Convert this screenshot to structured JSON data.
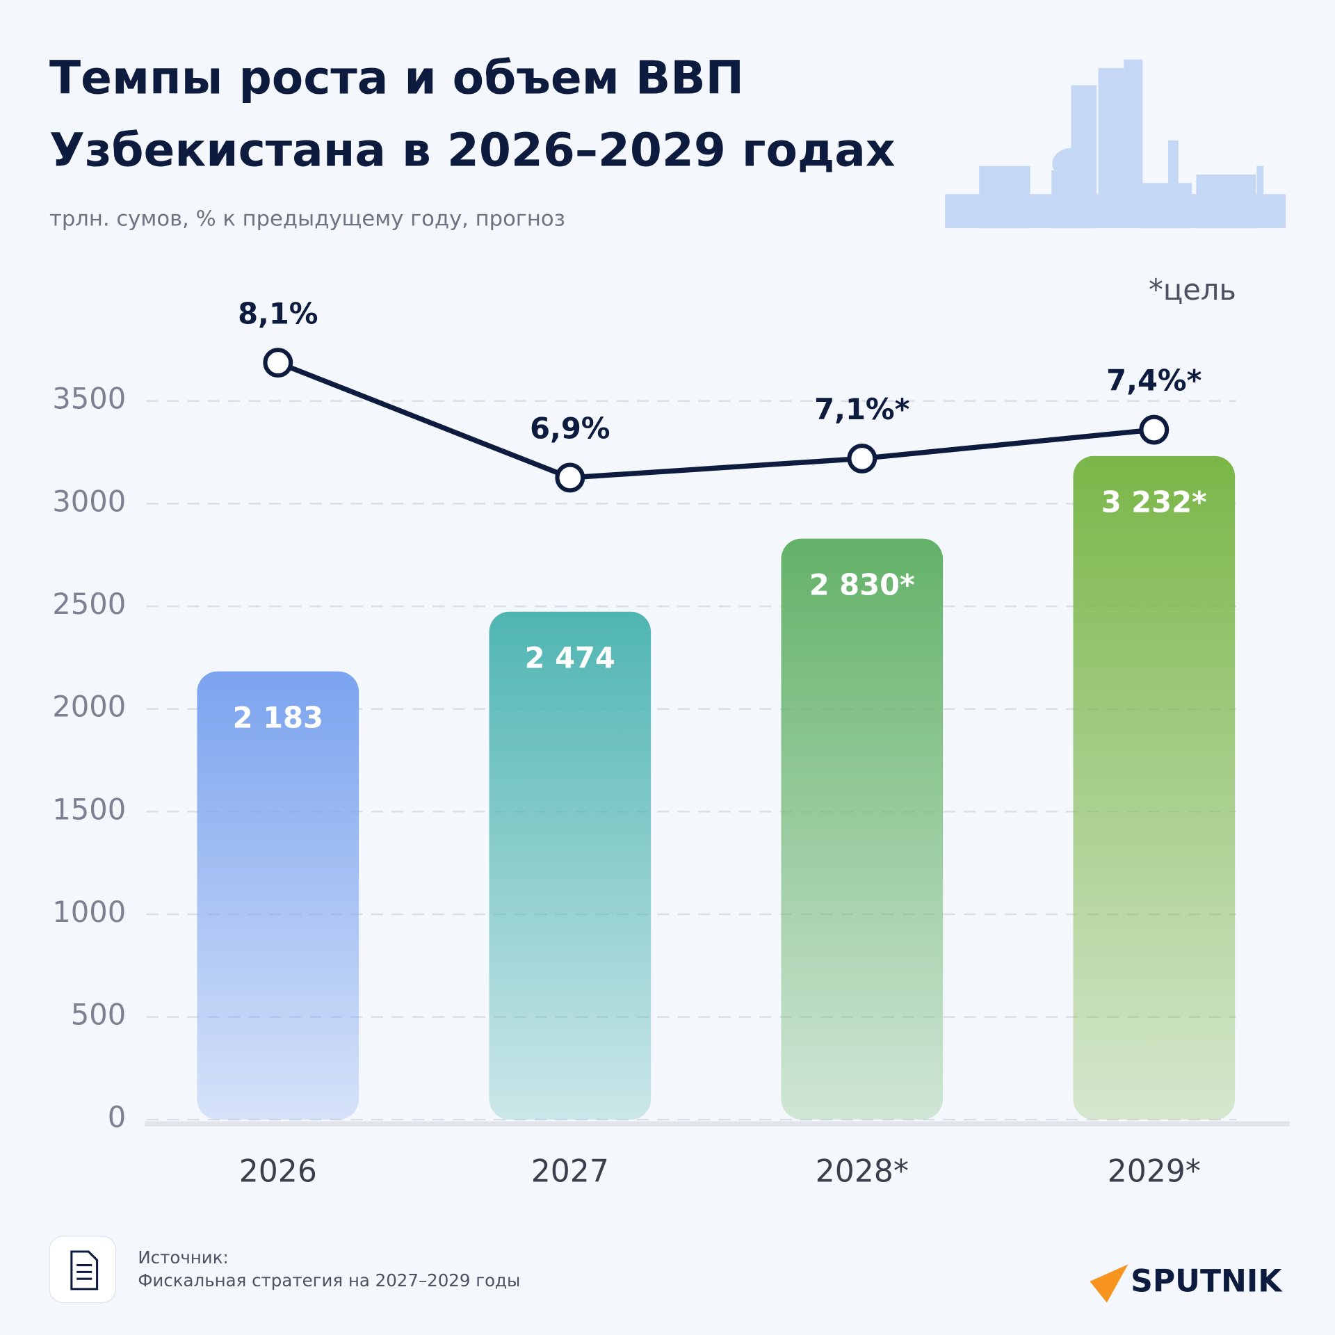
{
  "chart_data": {
    "type": "bar",
    "title": [
      "Темпы роста и объем ВВП",
      "Узбекистана в 2026–2029 годах"
    ],
    "subtitle": "трлн. сумов, % к предыдущему году, прогноз",
    "note": "*цель",
    "categories": [
      "2026",
      "2027",
      "2028*",
      "2029*"
    ],
    "series": [
      {
        "type": "bar",
        "colors": [
          "#7ba3ef",
          "#4fb5b2",
          "#63b268",
          "#7ab648"
        ],
        "values": [
          2183,
          2474,
          2830,
          3232
        ],
        "value_labels": [
          "2 183",
          "2 474",
          "2 830*",
          "3 232*"
        ]
      },
      {
        "type": "line",
        "axis": "y2",
        "color": "#0d1b3e",
        "values": [
          8.1,
          6.9,
          7.1,
          7.4
        ],
        "value_labels": [
          "8,1%",
          "6,9%",
          "7,1%*",
          "7,4%*"
        ]
      }
    ],
    "ylim": [
      0,
      3500
    ],
    "yticks": [
      0,
      500,
      1000,
      1500,
      2000,
      2500,
      3000,
      3500
    ],
    "grid": true,
    "y2lim": [
      0.2,
      7.7
    ],
    "source_label": "Источник:",
    "source": "Фискальная стратегия на 2027–2029 годы",
    "brand": "SPUTNIK"
  }
}
